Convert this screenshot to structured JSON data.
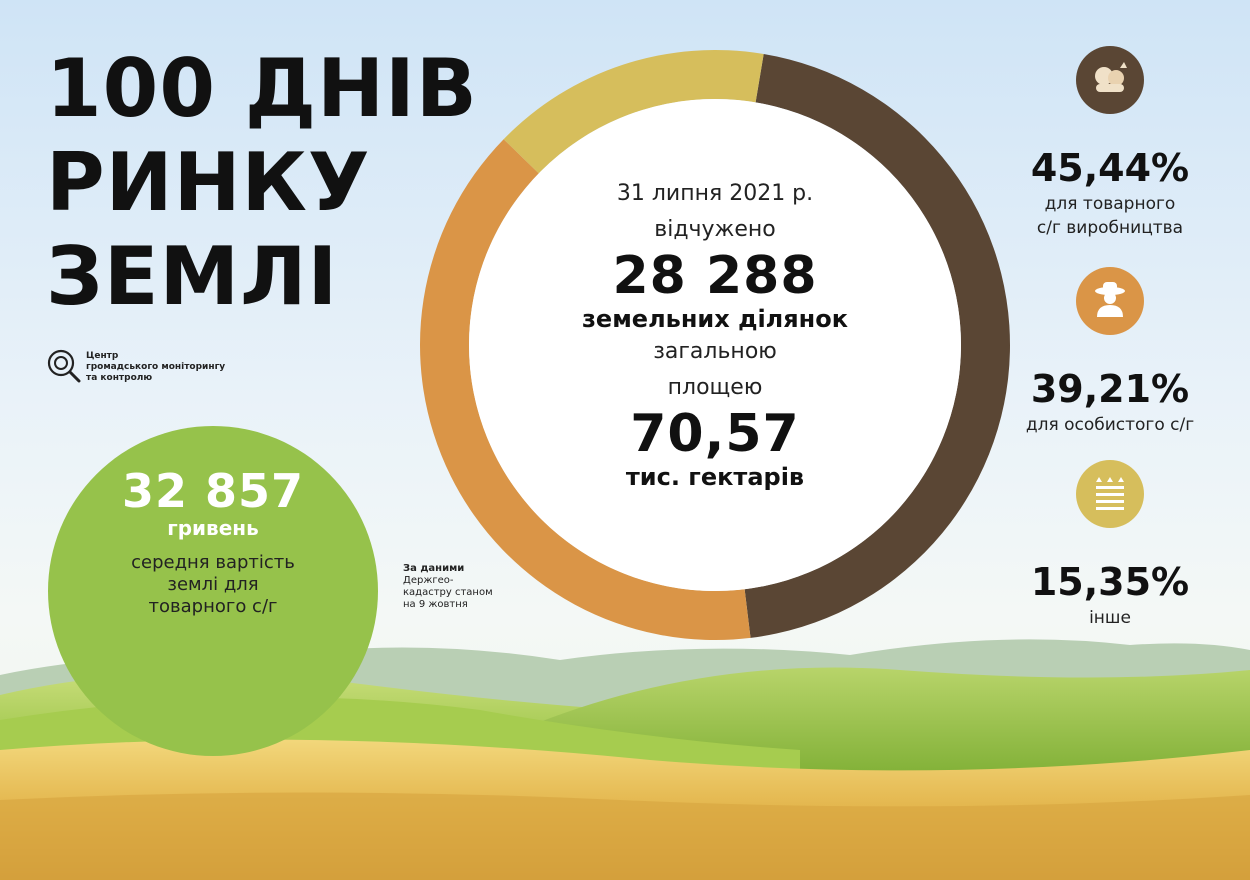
{
  "title": {
    "line1": "100 ДНІВ",
    "line2": "РИНКУ",
    "line3": "ЗЕМЛІ"
  },
  "logo": {
    "line1": "Центр",
    "line2": "громадського моніторингу",
    "line3": "та контролю"
  },
  "price": {
    "value": "32 857",
    "unit": "гривень",
    "desc1": "середня вартість",
    "desc2": "землі для",
    "desc3": "товарного с/г"
  },
  "source": {
    "line1": "За даними",
    "line2": "Держгео-",
    "line3": "кадастру станом",
    "line4": "на 9 жовтня"
  },
  "center": {
    "date": "31 липня 2021 р.",
    "verb": "відчужено",
    "parcels": "28 288",
    "parcels_label": "земельних ділянок",
    "area_label1": "загальною",
    "area_label2": "площею",
    "area": "70,57",
    "area_unit": "тис. гектарів"
  },
  "stats": [
    {
      "pct": "45,44%",
      "label1": "для товарного",
      "label2": "с/г виробництва",
      "icon": "vegetables-icon"
    },
    {
      "pct": "39,21%",
      "label1": "для особистого с/г",
      "label2": "",
      "icon": "farmer-icon"
    },
    {
      "pct": "15,35%",
      "label1": "інше",
      "label2": "",
      "icon": "field-icon"
    }
  ],
  "chart_data": {
    "type": "pie",
    "title": "",
    "categories": [
      "для товарного с/г виробництва",
      "для особистого с/г",
      "інше"
    ],
    "values": [
      45.44,
      39.21,
      15.35
    ],
    "colors": [
      "#5a4634",
      "#da9547",
      "#d6be5c"
    ],
    "donut": true
  },
  "colors": {
    "brown": "#5a4634",
    "orange": "#da9547",
    "yellow": "#d6be5c",
    "green": "#96c24b"
  }
}
